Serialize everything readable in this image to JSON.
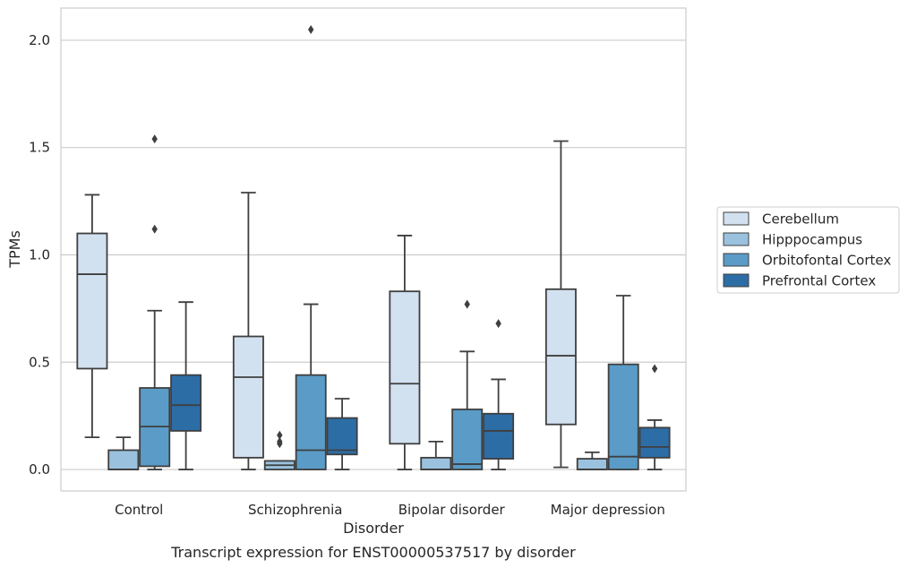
{
  "chart_data": {
    "type": "box",
    "caption": "Transcript expression for ENST00000537517 by disorder",
    "xlabel": "Disorder",
    "ylabel": "TPMs",
    "ylim": [
      -0.1,
      2.15
    ],
    "yticks": [
      "0.0",
      "0.5",
      "1.0",
      "1.5",
      "2.0"
    ],
    "ytick_values": [
      0.0,
      0.5,
      1.0,
      1.5,
      2.0
    ],
    "grid": "horizontal",
    "legend_position": "right",
    "categories": [
      "Control",
      "Schizophrenia",
      "Bipolar disorder",
      "Major depression"
    ],
    "series": [
      {
        "name": "Cerebellum",
        "color": "#d2e1f0",
        "boxes": [
          {
            "whislo": 0.15,
            "q1": 0.47,
            "med": 0.91,
            "q3": 1.1,
            "whishi": 1.28,
            "fliers": []
          },
          {
            "whislo": 0.0,
            "q1": 0.055,
            "med": 0.43,
            "q3": 0.62,
            "whishi": 1.29,
            "fliers": []
          },
          {
            "whislo": 0.0,
            "q1": 0.12,
            "med": 0.4,
            "q3": 0.83,
            "whishi": 1.09,
            "fliers": []
          },
          {
            "whislo": 0.01,
            "q1": 0.21,
            "med": 0.53,
            "q3": 0.84,
            "whishi": 1.53,
            "fliers": []
          }
        ]
      },
      {
        "name": "Hipppocampus",
        "color": "#9ac2de",
        "boxes": [
          {
            "whislo": 0.0,
            "q1": 0.0,
            "med": 0.0,
            "q3": 0.09,
            "whishi": 0.15,
            "fliers": []
          },
          {
            "whislo": 0.0,
            "q1": 0.0,
            "med": 0.02,
            "q3": 0.04,
            "whishi": 0.04,
            "fliers": [
              0.12,
              0.13,
              0.16
            ]
          },
          {
            "whislo": 0.0,
            "q1": 0.0,
            "med": 0.0,
            "q3": 0.055,
            "whishi": 0.13,
            "fliers": []
          },
          {
            "whislo": 0.0,
            "q1": 0.0,
            "med": 0.0,
            "q3": 0.05,
            "whishi": 0.08,
            "fliers": []
          }
        ]
      },
      {
        "name": "Orbitofontal Cortex",
        "color": "#5a9bc7",
        "boxes": [
          {
            "whislo": 0.0,
            "q1": 0.015,
            "med": 0.2,
            "q3": 0.38,
            "whishi": 0.74,
            "fliers": [
              1.12,
              1.54
            ]
          },
          {
            "whislo": 0.0,
            "q1": 0.0,
            "med": 0.09,
            "q3": 0.44,
            "whishi": 0.77,
            "fliers": [
              2.05
            ]
          },
          {
            "whislo": 0.0,
            "q1": 0.0,
            "med": 0.025,
            "q3": 0.28,
            "whishi": 0.55,
            "fliers": [
              0.77
            ]
          },
          {
            "whislo": 0.0,
            "q1": 0.0,
            "med": 0.06,
            "q3": 0.49,
            "whishi": 0.81,
            "fliers": []
          }
        ]
      },
      {
        "name": "Prefrontal Cortex",
        "color": "#2d6da6",
        "boxes": [
          {
            "whislo": 0.0,
            "q1": 0.18,
            "med": 0.3,
            "q3": 0.44,
            "whishi": 0.78,
            "fliers": []
          },
          {
            "whislo": 0.0,
            "q1": 0.07,
            "med": 0.09,
            "q3": 0.24,
            "whishi": 0.33,
            "fliers": []
          },
          {
            "whislo": 0.0,
            "q1": 0.05,
            "med": 0.18,
            "q3": 0.26,
            "whishi": 0.42,
            "fliers": [
              0.68
            ]
          },
          {
            "whislo": 0.0,
            "q1": 0.055,
            "med": 0.105,
            "q3": 0.195,
            "whishi": 0.23,
            "fliers": [
              0.47
            ]
          }
        ]
      }
    ]
  }
}
